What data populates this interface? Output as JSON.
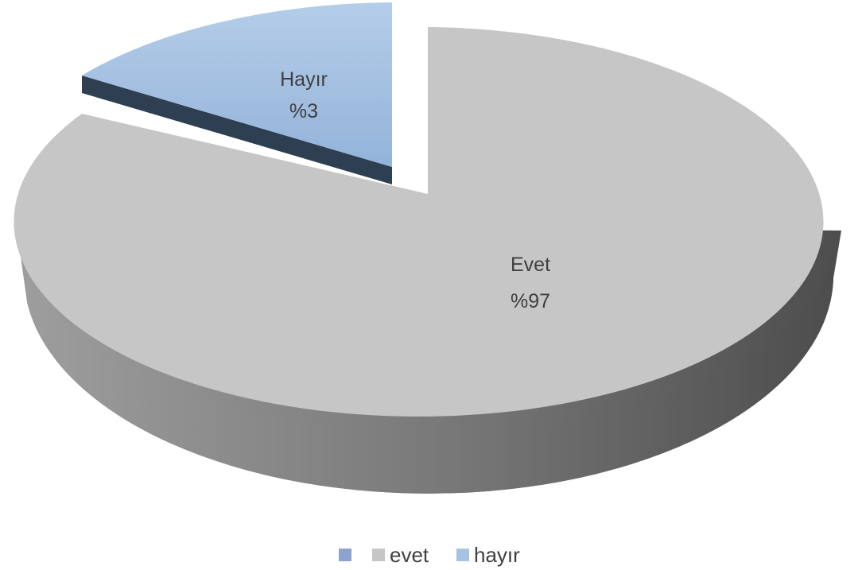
{
  "chart_data": {
    "type": "pie",
    "style": "3d-exploded",
    "slices": [
      {
        "label": "Evet",
        "value": 97,
        "value_label": "%97",
        "legend": "evet",
        "color": "#c6c6c6"
      },
      {
        "label": "Hayır",
        "value": 3,
        "value_label": "%3",
        "legend": "hayır",
        "color": "#a7c3e3"
      }
    ],
    "legend": {
      "position": "bottom",
      "entries": [
        {
          "label": "",
          "color": "#8da2cc"
        },
        {
          "label": "evet",
          "color": "#c6c6c6"
        },
        {
          "label": "hayır",
          "color": "#a7c3e3"
        }
      ]
    }
  }
}
